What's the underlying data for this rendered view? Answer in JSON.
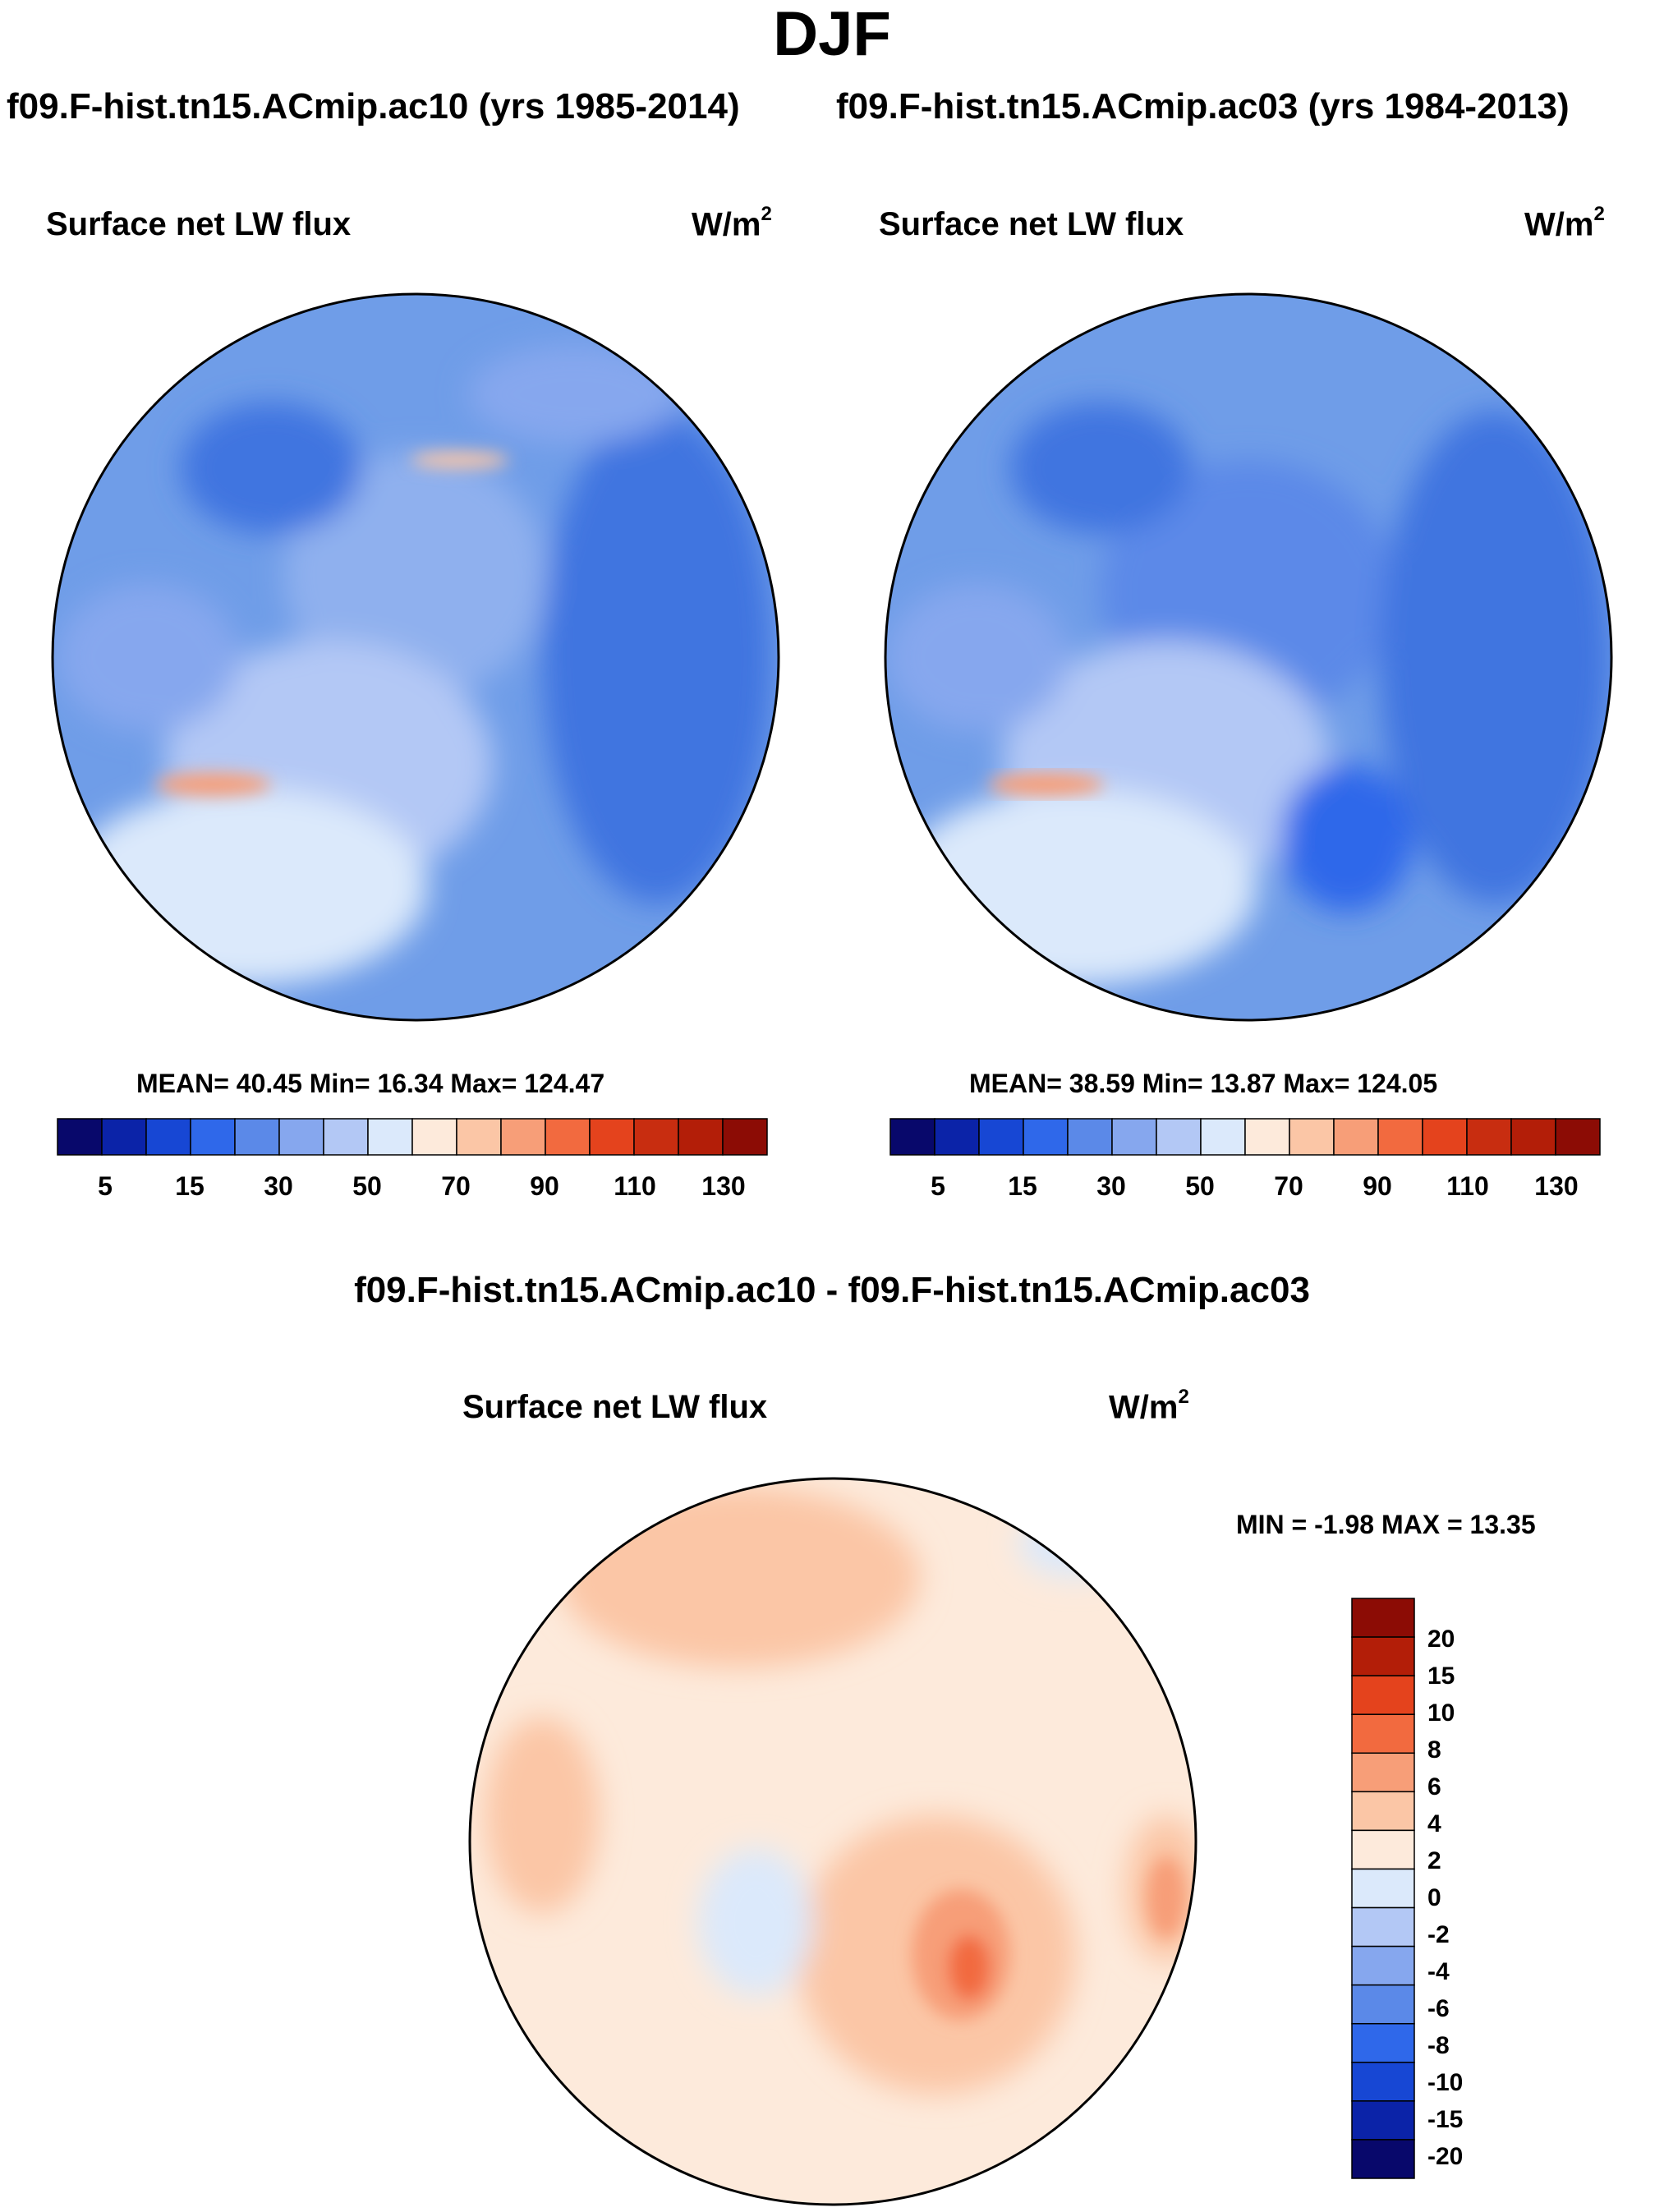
{
  "figure": {
    "title": "DJF",
    "run_left": "f09.F-hist.tn15.ACmip.ac10 (yrs 1985-2014)",
    "run_right": "f09.F-hist.tn15.ACmip.ac03 (yrs 1984-2013)",
    "diff_title": "f09.F-hist.tn15.ACmip.ac10 - f09.F-hist.tn15.ACmip.ac03"
  },
  "panels": [
    {
      "variable": "Surface net LW flux",
      "units_base": "W/m",
      "units_exp": "2",
      "stats": "MEAN=  40.45  Min=  16.34  Max= 124.47"
    },
    {
      "variable": "Surface net LW flux",
      "units_base": "W/m",
      "units_exp": "2",
      "stats": "MEAN=  38.59  Min=  13.87  Max= 124.05"
    },
    {
      "variable": "Surface net LW flux",
      "units_base": "W/m",
      "units_exp": "2",
      "stats": "MIN =  -1.98 MAX =  13.35"
    }
  ],
  "colorbar_abs": {
    "colors": [
      "#08086b",
      "#0b23a8",
      "#1747d4",
      "#2f68ea",
      "#5b89e8",
      "#86a7ee",
      "#b3c8f5",
      "#dbe9fb",
      "#fdeadb",
      "#fbc6a6",
      "#f79e78",
      "#f26a3f",
      "#e4431d",
      "#c82d10",
      "#b31e08",
      "#8c0c05"
    ],
    "tick_labels": [
      "5",
      "15",
      "30",
      "50",
      "70",
      "90",
      "110",
      "130"
    ]
  },
  "colorbar_diff": {
    "colors": [
      "#8c0c05",
      "#b31e08",
      "#e4431d",
      "#f26a3f",
      "#f79e78",
      "#fbc6a6",
      "#fdeadb",
      "#dbe9fb",
      "#b3c8f5",
      "#86a7ee",
      "#5b89e8",
      "#2f68ea",
      "#1747d4",
      "#0b23a8",
      "#08086b"
    ],
    "tick_labels": [
      "20",
      "15",
      "10",
      "8",
      "6",
      "4",
      "2",
      "0",
      "-2",
      "-4",
      "-6",
      "-8",
      "-10",
      "-15",
      "-20"
    ]
  },
  "map_colors": {
    "ocean_abs": "#6f9de8",
    "center_abs": "#8fb0ee",
    "deep_abs": "#3f74e0",
    "land_light": "#dbe9fb",
    "warm_edge": "#f79e78",
    "diff_base": "#fdeadb",
    "diff_warm": "#fbc6a6",
    "diff_hot": "#f26a3f",
    "diff_cool": "#dbe9fb"
  }
}
